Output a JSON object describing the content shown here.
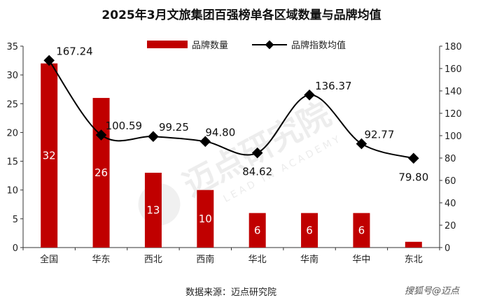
{
  "chart_data": {
    "type": "bar",
    "title": "2025年3月文旅集团百强榜单各区域数量与品牌均值",
    "categories": [
      "全国",
      "华东",
      "西北",
      "西南",
      "华北",
      "华南",
      "华中",
      "东北"
    ],
    "series": [
      {
        "name": "品牌数量",
        "type": "bar",
        "axis": "left",
        "color": "#c00000",
        "values": [
          32,
          26,
          13,
          10,
          6,
          6,
          6,
          1
        ],
        "labels": [
          "32",
          "26",
          "13",
          "10",
          "6",
          "6",
          "6",
          ""
        ]
      },
      {
        "name": "品牌指数均值",
        "type": "line",
        "axis": "right",
        "color": "#000000",
        "values": [
          167.24,
          100.59,
          99.25,
          94.8,
          84.62,
          136.37,
          92.77,
          79.8
        ],
        "labels": [
          "167.24",
          "100.59",
          "99.25",
          "94.80",
          "84.62",
          "136.37",
          "92.77",
          "79.80"
        ]
      }
    ],
    "ylim_left": [
      0,
      35
    ],
    "yticks_left": [
      "0",
      "5",
      "10",
      "15",
      "20",
      "25",
      "30",
      "35"
    ],
    "ylim_right": [
      0,
      180
    ],
    "yticks_right": [
      "0",
      "20",
      "40",
      "60",
      "80",
      "100",
      "120",
      "140",
      "160",
      "180"
    ],
    "legend_position": "top-center",
    "grid": false
  },
  "source": "数据来源：迈点研究院",
  "watermark": "迈点研究院",
  "watermark_sub": "LEAD IN ACADEMY",
  "credit": "搜狐号@迈点"
}
